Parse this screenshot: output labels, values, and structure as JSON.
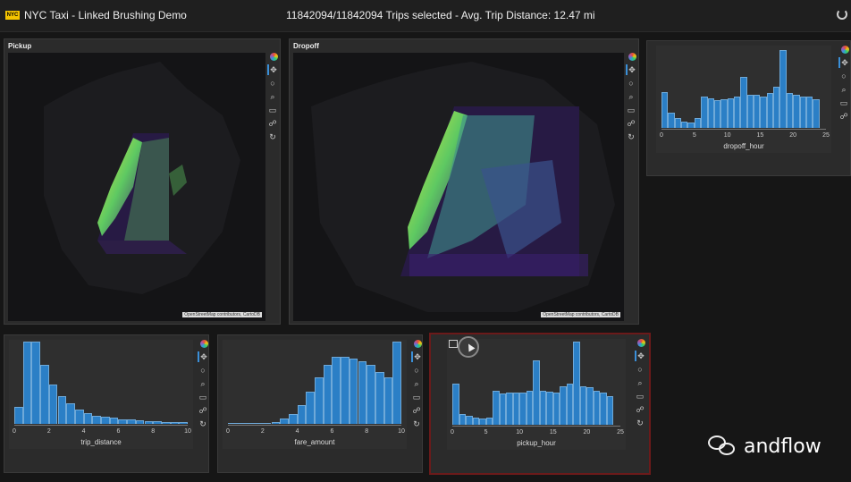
{
  "header": {
    "logo_text": "NYC",
    "title": "NYC Taxi - Linked Brushing Demo",
    "status": "11842094/11842094 Trips selected - Avg. Trip Distance: 12.47 mi"
  },
  "maps": [
    {
      "id": "pickup",
      "title": "Pickup",
      "attribution": "OpenStreetMap contributors, CartoDB"
    },
    {
      "id": "dropoff",
      "title": "Dropoff",
      "attribution": "OpenStreetMap contributors, CartoDB"
    }
  ],
  "toolbar_icons": [
    "bokeh-logo-icon",
    "pan-icon",
    "lasso-select-icon",
    "wheel-zoom-icon",
    "box-zoom-icon",
    "hover-icon",
    "reset-icon"
  ],
  "watermark": {
    "text": "andflow"
  },
  "colors": {
    "bar": "#2b7fc6",
    "panel": "#2b2b2b",
    "selected_border": "#6b1a1a",
    "density_low": "#3b1f6e",
    "density_high": "#e6ef3c"
  },
  "chart_data": [
    {
      "id": "dropoff_hour",
      "type": "bar",
      "xlabel": "dropoff_hour",
      "xlim": [
        0,
        25
      ],
      "ticks": [
        0,
        5,
        10,
        15,
        20,
        25
      ],
      "ylim": [
        0,
        1
      ],
      "bin_width": 1,
      "values": [
        0.44,
        0.18,
        0.12,
        0.08,
        0.07,
        0.12,
        0.38,
        0.36,
        0.34,
        0.35,
        0.36,
        0.38,
        0.62,
        0.4,
        0.4,
        0.38,
        0.42,
        0.5,
        0.95,
        0.42,
        0.4,
        0.38,
        0.38,
        0.35
      ]
    },
    {
      "id": "trip_distance",
      "type": "bar",
      "xlabel": "trip_distance",
      "xlim": [
        0,
        10
      ],
      "ticks": [
        0,
        2,
        4,
        6,
        8,
        10
      ],
      "ylim": [
        0,
        1
      ],
      "bin_width": 0.5,
      "values": [
        0.2,
        0.98,
        0.98,
        0.7,
        0.47,
        0.33,
        0.24,
        0.17,
        0.13,
        0.1,
        0.08,
        0.07,
        0.05,
        0.05,
        0.04,
        0.03,
        0.03,
        0.02,
        0.02,
        0.02
      ]
    },
    {
      "id": "fare_amount",
      "type": "bar",
      "xlabel": "fare_amount",
      "xlim": [
        0,
        10
      ],
      "ticks": [
        0,
        2,
        4,
        6,
        8,
        10
      ],
      "ylim": [
        0,
        1
      ],
      "bin_width": 0.5,
      "values": [
        0.01,
        0.01,
        0.01,
        0.01,
        0.01,
        0.02,
        0.06,
        0.12,
        0.22,
        0.38,
        0.55,
        0.7,
        0.8,
        0.8,
        0.78,
        0.75,
        0.7,
        0.62,
        0.55,
        0.98
      ]
    },
    {
      "id": "pickup_hour",
      "type": "bar",
      "xlabel": "pickup_hour",
      "xlim": [
        0,
        25
      ],
      "ticks": [
        0,
        5,
        10,
        15,
        20,
        25
      ],
      "ylim": [
        0,
        1
      ],
      "bin_width": 1,
      "values": [
        0.48,
        0.13,
        0.1,
        0.08,
        0.07,
        0.08,
        0.4,
        0.36,
        0.37,
        0.37,
        0.38,
        0.4,
        0.75,
        0.4,
        0.39,
        0.38,
        0.45,
        0.48,
        0.97,
        0.45,
        0.44,
        0.4,
        0.38,
        0.33
      ]
    }
  ]
}
